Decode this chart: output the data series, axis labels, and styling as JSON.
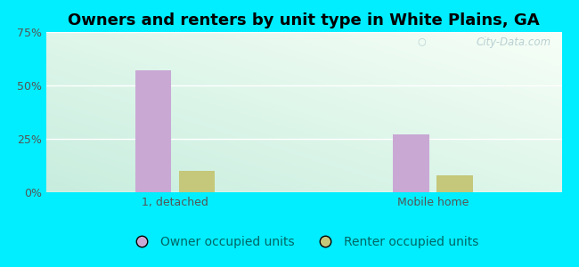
{
  "title": "Owners and renters by unit type in White Plains, GA",
  "categories": [
    "1, detached",
    "Mobile home"
  ],
  "owner_values": [
    57,
    27
  ],
  "renter_values": [
    10,
    8
  ],
  "owner_color": "#c9a8d4",
  "renter_color": "#c5c87a",
  "ylim": [
    0,
    75
  ],
  "yticks": [
    0,
    25,
    50,
    75
  ],
  "ytick_labels": [
    "0%",
    "25%",
    "50%",
    "75%"
  ],
  "owner_label": "Owner occupied units",
  "renter_label": "Renter occupied units",
  "bar_width": 0.28,
  "group_centers": [
    1.0,
    3.0
  ],
  "xlim": [
    0,
    4
  ],
  "background_outer": "#00eeff",
  "watermark": "City-Data.com",
  "title_fontsize": 13,
  "tick_fontsize": 9,
  "legend_fontsize": 10,
  "grid_color": "#ffffff",
  "tick_color": "#555555",
  "legend_text_color": "#006666"
}
